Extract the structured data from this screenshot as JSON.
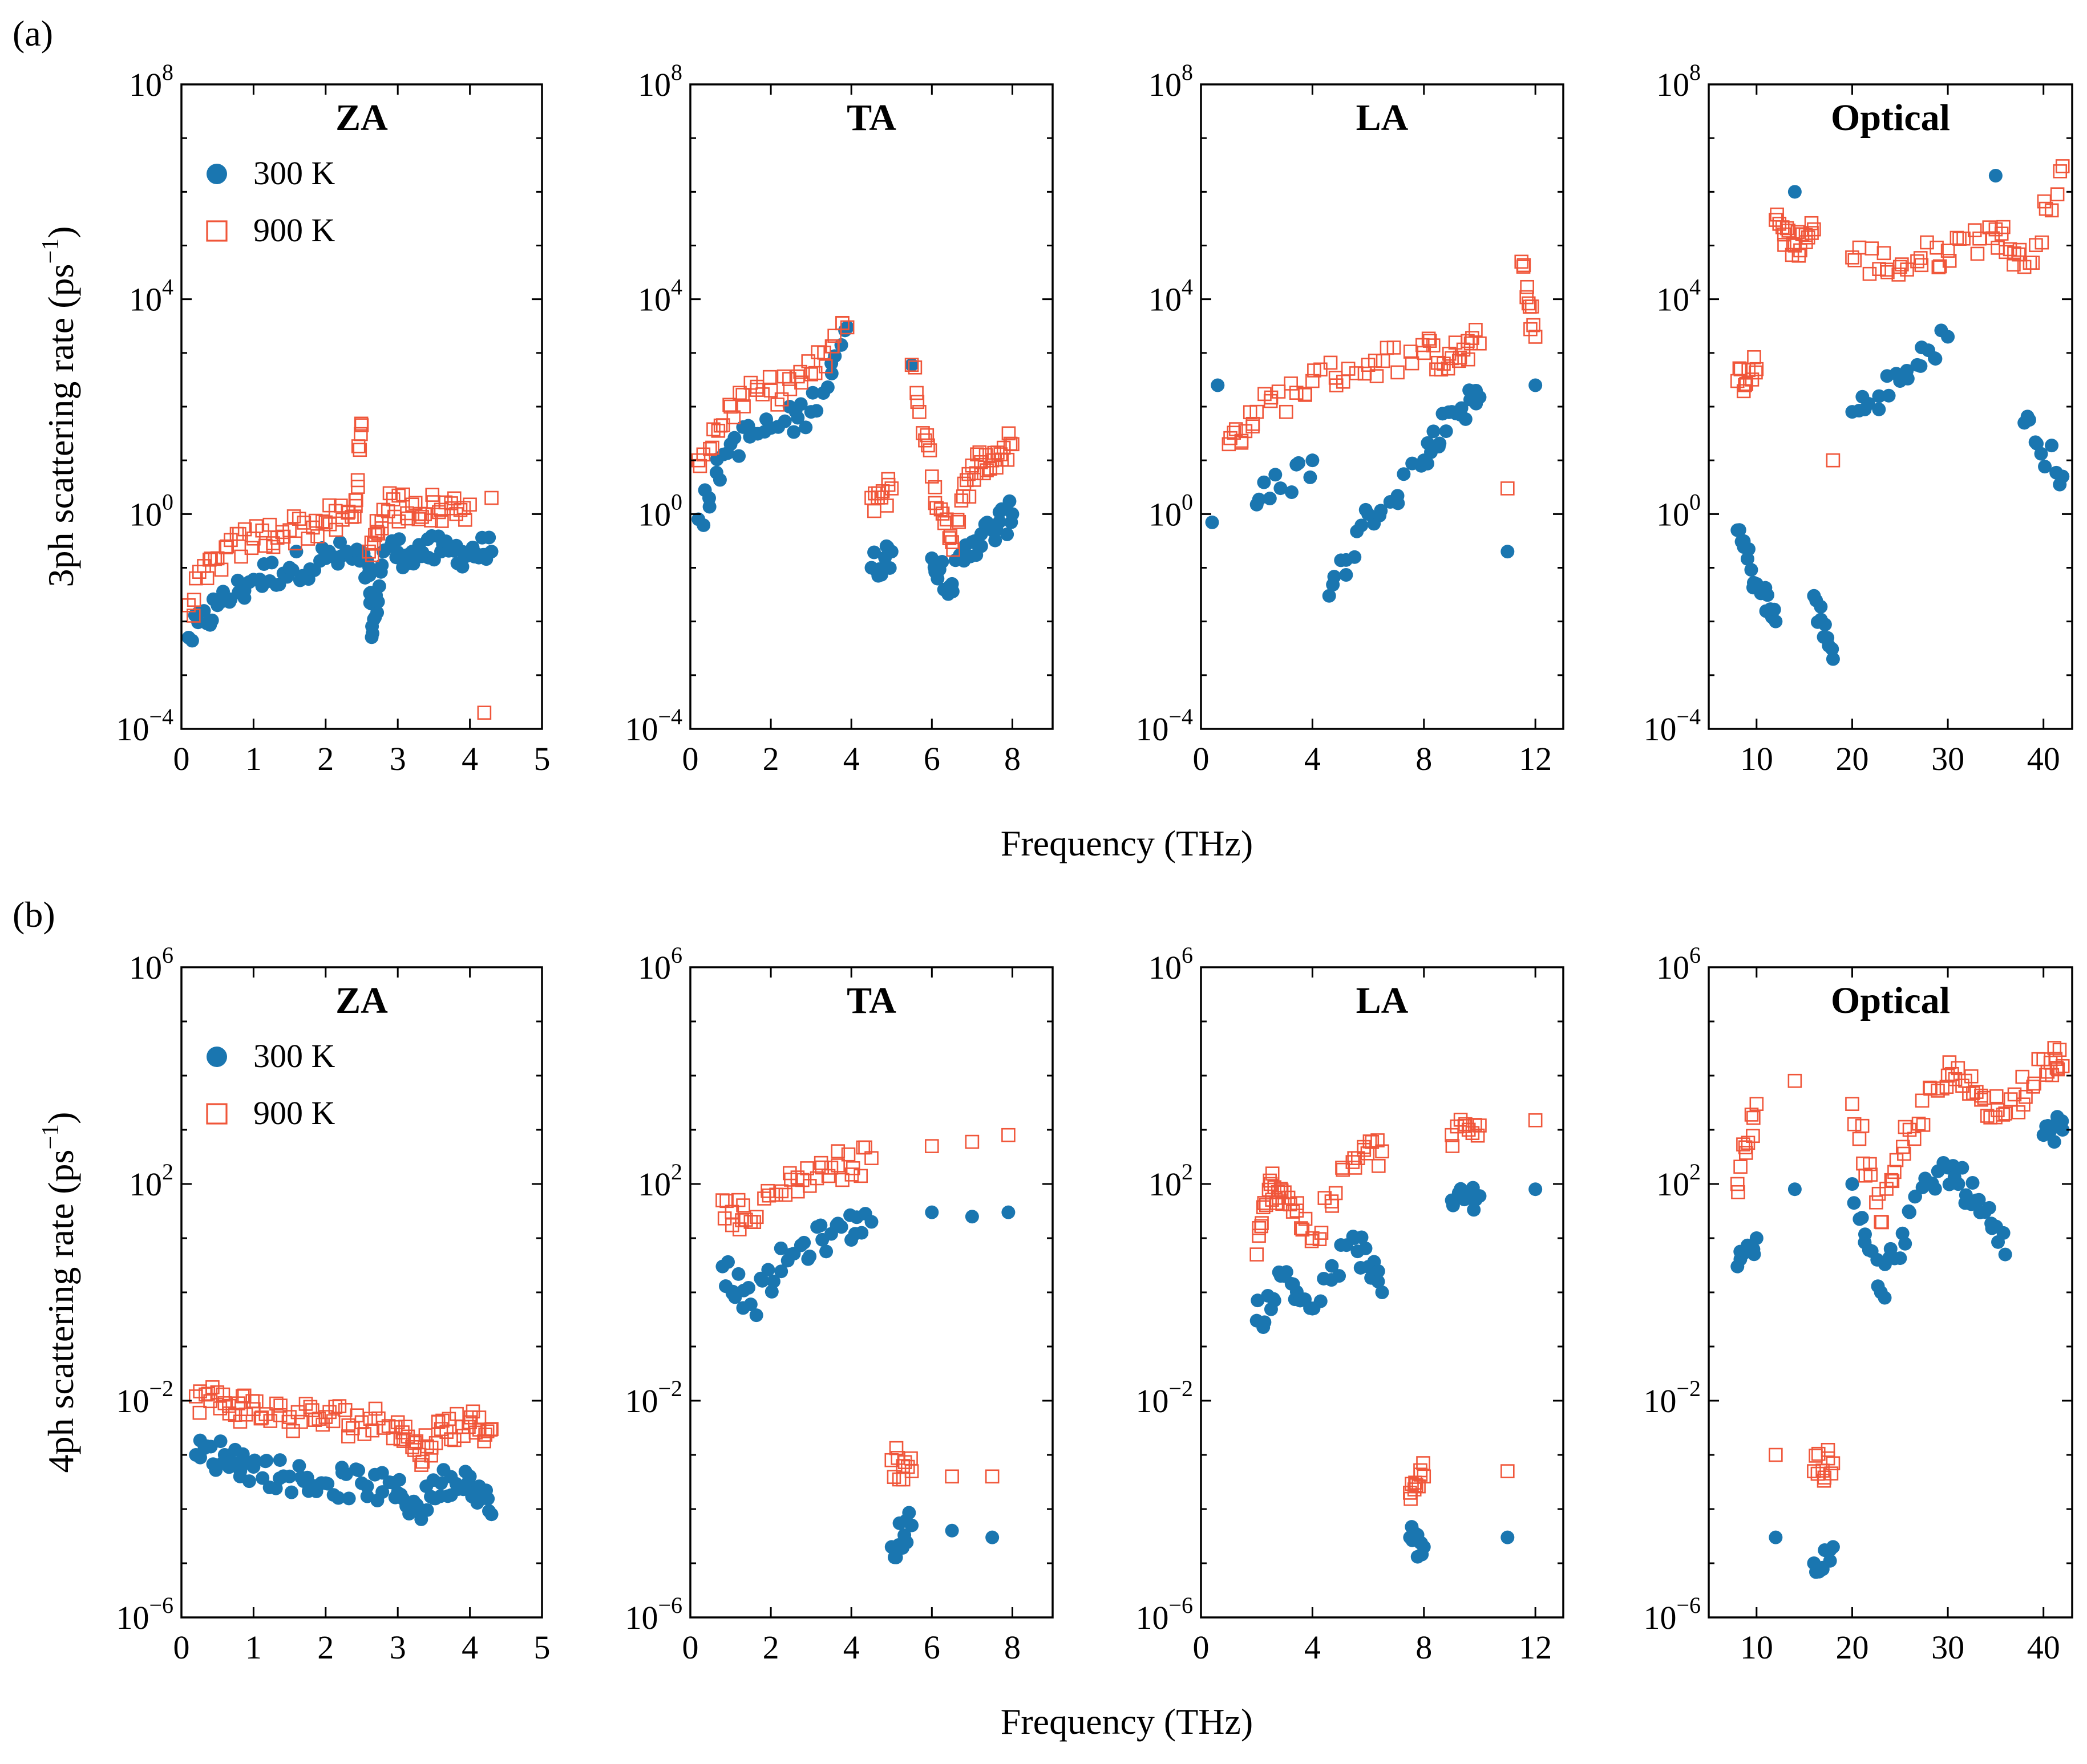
{
  "chart_data": [
    {
      "type": "scatter",
      "panel_label": "(a)",
      "ylabel": "3ph scattering rate (ps",
      "ylabel_sup": "−1",
      "ylabel_close": ")",
      "xlabel": "Frequency (THz)",
      "yscale": "log",
      "ylim": [
        0.0001,
        100000000
      ],
      "yticks": [
        {
          "base": "10",
          "exp": "−4",
          "value": 0.0001
        },
        {
          "base": "10",
          "exp": "0",
          "value": 1
        },
        {
          "base": "10",
          "exp": "4",
          "value": 10000
        },
        {
          "base": "10",
          "exp": "8",
          "value": 100000000
        }
      ],
      "legend": [
        {
          "name": "300 K",
          "color": "#1a76b0",
          "marker": "filled-circle"
        },
        {
          "name": "900 K",
          "color": "#f0563a",
          "marker": "open-square"
        }
      ],
      "legend_location": "upper-left of first subplot",
      "subplots": [
        {
          "title": "ZA",
          "xlim": [
            0,
            5
          ],
          "xticks": [
            "0",
            "1",
            "2",
            "3",
            "4",
            "5"
          ],
          "series": [
            {
              "name": "300 K",
              "x": [
                0.1,
                0.5,
                1.0,
                1.5,
                2.0,
                2.4,
                2.6,
                2.65,
                2.8,
                3.2,
                3.6,
                4.0,
                4.3
              ],
              "y": [
                0.005,
                0.02,
                0.06,
                0.1,
                0.15,
                0.17,
                0.08,
                0.006,
                0.2,
                0.2,
                0.2,
                0.2,
                0.2
              ]
            },
            {
              "name": "900 K",
              "x": [
                0.1,
                0.5,
                1.0,
                1.5,
                2.0,
                2.4,
                2.5,
                2.6,
                2.8,
                3.2,
                3.6,
                4.0,
                4.2,
                4.3
              ],
              "y": [
                0.02,
                0.15,
                0.35,
                0.5,
                0.7,
                0.9,
                45,
                0.2,
                1.2,
                1.5,
                1.2,
                1.5,
                0.0002,
                2
              ]
            }
          ]
        },
        {
          "title": "TA",
          "xlim": [
            0,
            9
          ],
          "xticks": [
            "0",
            "2",
            "4",
            "6",
            "8"
          ],
          "series": [
            {
              "name": "300 K",
              "x": [
                0.2,
                1.0,
                2.0,
                3.0,
                3.9,
                4.5,
                5.0,
                5.5,
                6.0,
                6.5,
                7.0,
                7.5,
                8.0
              ],
              "y": [
                0.8,
                20,
                40,
                80,
                3000,
                0.1,
                0.2,
                600,
                0.15,
                0.05,
                0.3,
                0.5,
                1
              ]
            },
            {
              "name": "900 K",
              "x": [
                0.2,
                1.0,
                2.0,
                3.0,
                3.9,
                4.5,
                5.0,
                5.5,
                6.0,
                6.5,
                7.0,
                7.5,
                8.0
              ],
              "y": [
                10,
                100,
                200,
                400,
                3000,
                2,
                3,
                600,
                5,
                0.3,
                8,
                10,
                20
              ]
            }
          ]
        },
        {
          "title": "LA",
          "xlim": [
            0,
            13
          ],
          "xticks": [
            "0",
            "4",
            "8",
            "12"
          ],
          "series": [
            {
              "name": "300 K",
              "x": [
                0.4,
                0.6,
                2.0,
                4.0,
                4.6,
                6.0,
                8.0,
                9.0,
                10.0,
                11.0,
                12.0
              ],
              "y": [
                0.7,
                250,
                1.5,
                10,
                0.03,
                1,
                10,
                80,
                150,
                0.2,
                250
              ]
            },
            {
              "name": "900 K",
              "x": [
                1.0,
                2.0,
                4.0,
                6.0,
                8.0,
                9.0,
                10.0,
                11.0,
                11.5,
                12.0
              ],
              "y": [
                20,
                80,
                300,
                600,
                1000,
                800,
                1500,
                3,
                50000,
                2000
              ]
            }
          ]
        },
        {
          "title": "Optical",
          "xlim": [
            5,
            43
          ],
          "xticks": [
            "10",
            "20",
            "30",
            "40"
          ],
          "series": [
            {
              "name": "300 K",
              "x": [
                8,
                10,
                12,
                14,
                16,
                18,
                20,
                25,
                30,
                35,
                38,
                42
              ],
              "y": [
                0.5,
                0.05,
                0.01,
                1000000,
                0.03,
                0.002,
                80,
                300,
                2000,
                2000000,
                50,
                5
              ]
            },
            {
              "name": "900 K",
              "x": [
                8,
                10,
                12,
                14,
                16,
                18,
                20,
                25,
                30,
                35,
                38,
                42
              ],
              "y": [
                300,
                500,
                300000,
                100000,
                200000,
                10,
                60000,
                40000,
                80000,
                200000,
                40000,
                3000000
              ]
            }
          ]
        }
      ]
    },
    {
      "type": "scatter",
      "panel_label": "(b)",
      "ylabel": "4ph scattering rate (ps",
      "ylabel_sup": "−1",
      "ylabel_close": ")",
      "xlabel": "Frequency (THz)",
      "yscale": "log",
      "ylim": [
        1e-06,
        1000000
      ],
      "yticks": [
        {
          "base": "10",
          "exp": "−6",
          "value": 1e-06
        },
        {
          "base": "10",
          "exp": "−2",
          "value": 0.01
        },
        {
          "base": "10",
          "exp": "2",
          "value": 100
        },
        {
          "base": "10",
          "exp": "6",
          "value": 1000000
        }
      ],
      "legend": [
        {
          "name": "300 K",
          "color": "#1a76b0",
          "marker": "filled-circle"
        },
        {
          "name": "900 K",
          "color": "#f0563a",
          "marker": "open-square"
        }
      ],
      "legend_location": "upper-left of first subplot",
      "subplots": [
        {
          "title": "ZA",
          "xlim": [
            0,
            5
          ],
          "xticks": [
            "0",
            "1",
            "2",
            "3",
            "4",
            "5"
          ],
          "series": [
            {
              "name": "300 K",
              "x": [
                0.2,
                0.6,
                1.0,
                1.5,
                2.0,
                2.5,
                3.0,
                3.3,
                3.6,
                4.0,
                4.3
              ],
              "y": [
                0.001,
                0.001,
                0.0006,
                0.0004,
                0.0003,
                0.0003,
                0.0002,
                0.0001,
                0.0003,
                0.0004,
                8e-05
              ]
            },
            {
              "name": "900 K",
              "x": [
                0.2,
                0.6,
                1.0,
                1.5,
                2.0,
                2.5,
                3.0,
                3.3,
                3.6,
                4.0,
                4.3
              ],
              "y": [
                0.012,
                0.009,
                0.007,
                0.005,
                0.005,
                0.004,
                0.004,
                0.001,
                0.003,
                0.004,
                0.003
              ]
            }
          ]
        },
        {
          "title": "TA",
          "xlim": [
            0,
            9
          ],
          "xticks": [
            "0",
            "2",
            "4",
            "6",
            "8"
          ],
          "series": [
            {
              "name": "300 K",
              "x": [
                0.8,
                1.5,
                2.5,
                3.5,
                4.5,
                5.0,
                5.5,
                6.0,
                6.5,
                7.0,
                7.5,
                7.9
              ],
              "y": [
                3,
                0.6,
                5,
                12,
                20,
                2e-05,
                5e-05,
                30,
                4e-05,
                25,
                3e-05,
                30
              ]
            },
            {
              "name": "900 K",
              "x": [
                0.8,
                1.5,
                2.5,
                3.5,
                4.5,
                5.0,
                5.5,
                6.0,
                6.5,
                7.0,
                7.5,
                7.9
              ],
              "y": [
                50,
                20,
                120,
                200,
                300,
                0.0008,
                0.0005,
                500,
                0.0004,
                600,
                0.0004,
                800
              ]
            }
          ]
        },
        {
          "title": "LA",
          "xlim": [
            0,
            13
          ],
          "xticks": [
            "0",
            "4",
            "8",
            "12"
          ],
          "series": [
            {
              "name": "300 K",
              "x": [
                2.0,
                3.0,
                4.0,
                5.5,
                6.5,
                7.5,
                8.0,
                9.0,
                10.0,
                11.0,
                12.0
              ],
              "y": [
                0.3,
                2,
                0.5,
                10,
                1,
                3e-05,
                2e-05,
                50,
                60,
                3e-05,
                80
              ]
            },
            {
              "name": "900 K",
              "x": [
                2.0,
                2.5,
                3.0,
                4.0,
                5.5,
                6.5,
                7.5,
                8.0,
                9.0,
                10.0,
                11.0,
                12.0
              ],
              "y": [
                5,
                100,
                70,
                10,
                300,
                400,
                0.0002,
                0.0004,
                800,
                1200,
                0.0005,
                1500
              ]
            }
          ]
        },
        {
          "title": "Optical",
          "xlim": [
            5,
            43
          ],
          "xticks": [
            "10",
            "20",
            "30",
            "40"
          ],
          "series": [
            {
              "name": "300 K",
              "x": [
                8,
                10,
                12,
                14,
                16,
                18,
                20,
                23,
                26,
                30,
                33,
                36,
                40,
                42
              ],
              "y": [
                3,
                10,
                3e-05,
                80,
                1e-05,
                2e-05,
                100,
                1,
                30,
                200,
                50,
                5,
                800,
                1000
              ]
            },
            {
              "name": "900 K",
              "x": [
                8,
                10,
                12,
                14,
                16,
                18,
                20,
                23,
                26,
                30,
                33,
                36,
                40,
                42
              ],
              "y": [
                100,
                3000,
                0.001,
                8000,
                0.0005,
                0.0007,
                3000,
                20,
                1000,
                10000,
                5000,
                2000,
                20000,
                15000
              ]
            }
          ]
        }
      ]
    }
  ]
}
